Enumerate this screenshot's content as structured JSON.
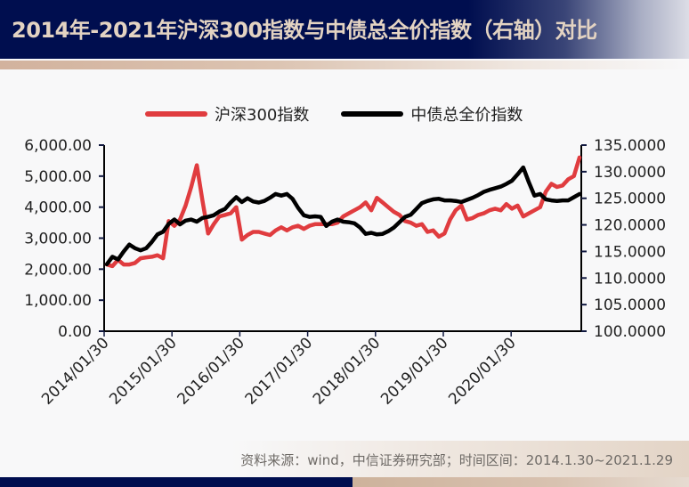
{
  "header": {
    "title": "2014年-2021年沪深300指数与中债总全价指数（右轴）对比"
  },
  "legend": {
    "items": [
      {
        "label": "沪深300指数",
        "color": "#e03c3f"
      },
      {
        "label": "中债总全价指数",
        "color": "#000000"
      }
    ]
  },
  "footer": {
    "source": "资料来源：wind，中信证券研究部；时间区间：2014.1.30~2021.1.29"
  },
  "colors": {
    "header_bg": "#000e4f",
    "title_text": "#e3d3c2",
    "accent_gold": "#d2b29d",
    "series_red": "#e03c3f",
    "series_black": "#000000"
  },
  "chart_data": {
    "type": "line",
    "title": "2014年-2021年沪深300指数与中债总全价指数（右轴）对比",
    "xlabel": "",
    "ylabel_left": "",
    "ylabel_right": "",
    "x_tick_labels": [
      "2014/01/30",
      "2015/01/30",
      "2016/01/30",
      "2017/01/30",
      "2018/01/30",
      "2019/01/30",
      "2020/01/30"
    ],
    "left_axis": {
      "ylim": [
        0,
        6000
      ],
      "ticks": [
        "0.00",
        "1,000.00",
        "2,000.00",
        "3,000.00",
        "4,000.00",
        "5,000.00",
        "6,000.00"
      ]
    },
    "right_axis": {
      "ylim": [
        100,
        135
      ],
      "ticks": [
        "100.0000",
        "105.0000",
        "110.0000",
        "115.0000",
        "120.0000",
        "125.0000",
        "130.0000",
        "135.0000"
      ]
    },
    "grid": false,
    "legend_position": "top",
    "x": [
      "2014-01",
      "2014-02",
      "2014-03",
      "2014-04",
      "2014-05",
      "2014-06",
      "2014-07",
      "2014-08",
      "2014-09",
      "2014-10",
      "2014-11",
      "2014-12",
      "2015-01",
      "2015-02",
      "2015-03",
      "2015-04",
      "2015-05",
      "2015-06",
      "2015-07",
      "2015-08",
      "2015-09",
      "2015-10",
      "2015-11",
      "2015-12",
      "2016-01",
      "2016-02",
      "2016-03",
      "2016-04",
      "2016-05",
      "2016-06",
      "2016-07",
      "2016-08",
      "2016-09",
      "2016-10",
      "2016-11",
      "2016-12",
      "2017-01",
      "2017-02",
      "2017-03",
      "2017-04",
      "2017-05",
      "2017-06",
      "2017-07",
      "2017-08",
      "2017-09",
      "2017-10",
      "2017-11",
      "2017-12",
      "2018-01",
      "2018-02",
      "2018-03",
      "2018-04",
      "2018-05",
      "2018-06",
      "2018-07",
      "2018-08",
      "2018-09",
      "2018-10",
      "2018-11",
      "2018-12",
      "2019-01",
      "2019-02",
      "2019-03",
      "2019-04",
      "2019-05",
      "2019-06",
      "2019-07",
      "2019-08",
      "2019-09",
      "2019-10",
      "2019-11",
      "2019-12",
      "2020-01",
      "2020-02",
      "2020-03",
      "2020-04",
      "2020-05",
      "2020-06",
      "2020-07",
      "2020-08",
      "2020-09",
      "2020-10",
      "2020-11",
      "2020-12",
      "2021-01"
    ],
    "series": [
      {
        "name": "沪深300指数",
        "axis": "left",
        "color": "#e03c3f",
        "values": [
          2150,
          2100,
          2300,
          2150,
          2150,
          2200,
          2350,
          2380,
          2400,
          2450,
          2350,
          3550,
          3400,
          3600,
          4050,
          4650,
          5350,
          4200,
          3150,
          3450,
          3700,
          3750,
          3800,
          4000,
          2950,
          3100,
          3200,
          3200,
          3150,
          3100,
          3250,
          3350,
          3250,
          3350,
          3400,
          3300,
          3400,
          3450,
          3450,
          3450,
          3450,
          3500,
          3700,
          3800,
          3900,
          4000,
          4150,
          3900,
          4300,
          4150,
          4000,
          3850,
          3750,
          3550,
          3500,
          3400,
          3450,
          3200,
          3250,
          3050,
          3150,
          3600,
          3900,
          4050,
          3600,
          3650,
          3750,
          3800,
          3900,
          3950,
          3900,
          4100,
          3950,
          4050,
          3700,
          3800,
          3900,
          4000,
          4500,
          4750,
          4650,
          4700,
          4900,
          5000,
          5600
        ]
      },
      {
        "name": "中债总全价指数",
        "axis": "right",
        "color": "#000000",
        "values": [
          112.6,
          114.0,
          113.5,
          115.0,
          116.3,
          115.6,
          115.2,
          115.6,
          116.8,
          118.2,
          118.7,
          120.2,
          121.0,
          120.1,
          120.8,
          121.0,
          120.6,
          121.3,
          121.5,
          121.8,
          122.5,
          123.0,
          124.2,
          125.2,
          124.3,
          125.0,
          124.4,
          124.2,
          124.5,
          125.1,
          125.8,
          125.5,
          125.8,
          124.9,
          123.2,
          121.8,
          121.5,
          121.6,
          121.5,
          119.8,
          120.6,
          121.0,
          120.6,
          120.5,
          120.3,
          119.5,
          118.3,
          118.5,
          118.2,
          118.3,
          118.8,
          119.5,
          120.5,
          121.5,
          121.9,
          123.0,
          124.1,
          124.5,
          124.8,
          124.9,
          124.6,
          124.6,
          124.5,
          124.3,
          124.7,
          125.1,
          125.6,
          126.2,
          126.6,
          126.9,
          127.2,
          127.7,
          128.3,
          129.5,
          130.8,
          128.0,
          125.5,
          125.8,
          124.8,
          124.6,
          124.5,
          124.6,
          124.6,
          125.2,
          125.8
        ]
      }
    ]
  }
}
